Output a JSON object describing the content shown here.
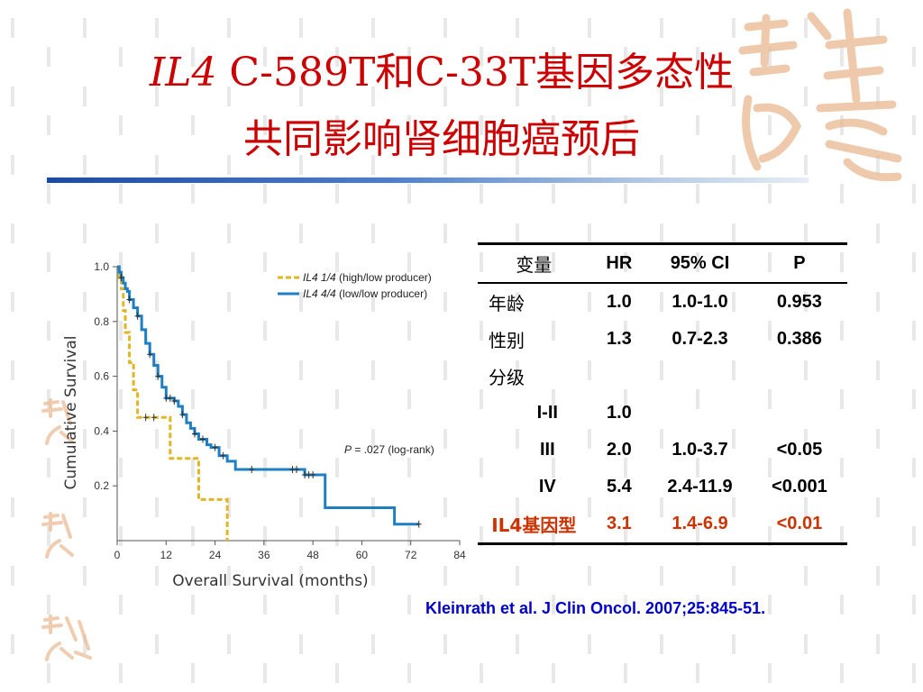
{
  "title": {
    "line1_gene": "IL4",
    "line1_rest": " C-589T和C-33T基因多态性",
    "line2": "共同影响肾细胞癌预后"
  },
  "colors": {
    "title": "#cc0000",
    "rule": "#1a4aa8",
    "series_high_low": "#e0b526",
    "series_low_low": "#1f7fc2",
    "highlight_row": "#cc3300",
    "citation": "#0000cc"
  },
  "chart_data": {
    "type": "line",
    "step": true,
    "xlabel": "Overall Survival (months)",
    "ylabel": "Cumulative Survival",
    "xlim": [
      0,
      84
    ],
    "ylim": [
      0,
      1.0
    ],
    "x_ticks": [
      0,
      12,
      24,
      36,
      48,
      60,
      72,
      84
    ],
    "y_ticks": [
      0.2,
      0.4,
      0.6,
      0.8,
      1.0
    ],
    "y_tick_labels": [
      "0.2",
      "0.4",
      "0.6",
      "0.8",
      "1.0"
    ],
    "legend": {
      "position": "top-right",
      "entries": [
        {
          "gene": "IL4 1/4",
          "rest": " (high/low producer)"
        },
        {
          "gene": "IL4 4/4",
          "rest": " (low/low producer)"
        }
      ]
    },
    "annotation": {
      "italic": "P",
      "rest": " = .027 (log-rank)"
    },
    "series": [
      {
        "name": "IL4 1/4 (high/low producer)",
        "color": "#e0b526",
        "style": "dashed",
        "points": [
          [
            0,
            1.0
          ],
          [
            0.5,
            0.96
          ],
          [
            1,
            0.92
          ],
          [
            1.5,
            0.84
          ],
          [
            2,
            0.76
          ],
          [
            3,
            0.65
          ],
          [
            4,
            0.55
          ],
          [
            5,
            0.45
          ],
          [
            10,
            0.45
          ],
          [
            12,
            0.45
          ],
          [
            13,
            0.3
          ],
          [
            19,
            0.3
          ],
          [
            20,
            0.15
          ],
          [
            26,
            0.15
          ],
          [
            27,
            0.0
          ]
        ],
        "censored": [
          [
            7,
            0.45
          ],
          [
            9,
            0.45
          ]
        ]
      },
      {
        "name": "IL4 4/4 (low/low producer)",
        "color": "#1f7fc2",
        "style": "solid",
        "points": [
          [
            0,
            1.0
          ],
          [
            0.5,
            0.98
          ],
          [
            1,
            0.96
          ],
          [
            1.5,
            0.94
          ],
          [
            2,
            0.92
          ],
          [
            2.5,
            0.91
          ],
          [
            3,
            0.88
          ],
          [
            4,
            0.85
          ],
          [
            5,
            0.82
          ],
          [
            6,
            0.77
          ],
          [
            7,
            0.72
          ],
          [
            8,
            0.68
          ],
          [
            9,
            0.64
          ],
          [
            10,
            0.6
          ],
          [
            11,
            0.56
          ],
          [
            12,
            0.52
          ],
          [
            14,
            0.51
          ],
          [
            15,
            0.49
          ],
          [
            16,
            0.46
          ],
          [
            17,
            0.43
          ],
          [
            18,
            0.41
          ],
          [
            19,
            0.39
          ],
          [
            20,
            0.37
          ],
          [
            22,
            0.35
          ],
          [
            23,
            0.34
          ],
          [
            25,
            0.31
          ],
          [
            27,
            0.29
          ],
          [
            29,
            0.26
          ],
          [
            45,
            0.26
          ],
          [
            46,
            0.24
          ],
          [
            50,
            0.24
          ],
          [
            51,
            0.12
          ],
          [
            67,
            0.12
          ],
          [
            68,
            0.06
          ],
          [
            74,
            0.06
          ]
        ],
        "censored": [
          [
            1,
            0.96
          ],
          [
            3,
            0.88
          ],
          [
            5,
            0.82
          ],
          [
            8,
            0.68
          ],
          [
            10,
            0.6
          ],
          [
            12,
            0.52
          ],
          [
            13,
            0.52
          ],
          [
            14,
            0.51
          ],
          [
            16,
            0.46
          ],
          [
            19,
            0.39
          ],
          [
            21,
            0.37
          ],
          [
            24,
            0.34
          ],
          [
            26,
            0.31
          ],
          [
            33,
            0.26
          ],
          [
            43,
            0.26
          ],
          [
            44,
            0.26
          ],
          [
            46,
            0.24
          ],
          [
            47,
            0.24
          ],
          [
            48,
            0.24
          ],
          [
            74,
            0.06
          ]
        ]
      }
    ]
  },
  "table": {
    "headers": [
      "变量",
      "HR",
      "95% CI",
      "P"
    ],
    "rows": [
      {
        "var": "年龄",
        "hr": "1.0",
        "ci": "1.0-1.0",
        "p": "0.953"
      },
      {
        "var": "性别",
        "hr": "1.3",
        "ci": "0.7-2.3",
        "p": "0.386"
      },
      {
        "var": "分级",
        "hr": "",
        "ci": "",
        "p": ""
      },
      {
        "var": "I-II",
        "hr": "1.0",
        "ci": "",
        "p": ""
      },
      {
        "var": "III",
        "hr": "2.0",
        "ci": "1.0-3.7",
        "p": "<0.05"
      },
      {
        "var": "IV",
        "hr": "5.4",
        "ci": "2.4-11.9",
        "p": "<0.001"
      },
      {
        "var": "IL4基因型",
        "hr": "3.1",
        "ci": "1.4-6.9",
        "p": "<0.01"
      }
    ]
  },
  "citation": "Kleinrath et al. J Clin Oncol. 2007;25:845-51.",
  "decorations": {
    "background": "light-gray-dash-pattern",
    "seal_icon": "auspicious-seal-icon"
  }
}
